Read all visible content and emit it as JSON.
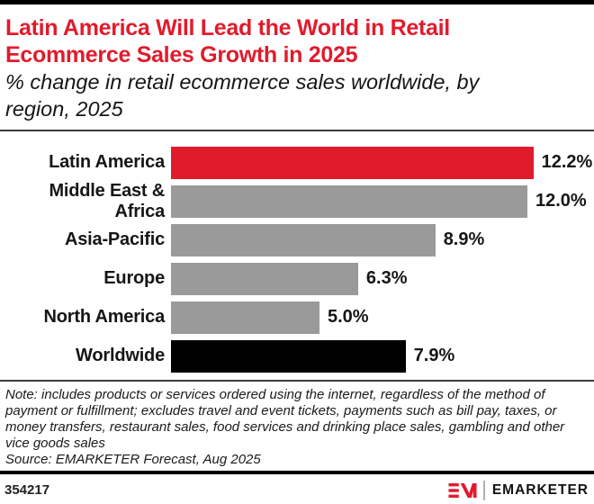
{
  "header": {
    "title": "Latin America Will Lead the World in Retail Ecommerce Sales Growth in 2025",
    "title_lines": [
      "Latin America Will Lead the World in Retail",
      "Ecommerce Sales Growth in 2025"
    ],
    "subtitle": "% change in retail ecommerce sales worldwide, by region, 2025",
    "subtitle_lines": [
      "% change in retail ecommerce sales worldwide, by",
      "region, 2025"
    ]
  },
  "chart_data": {
    "type": "bar",
    "orientation": "horizontal",
    "title": "Latin America Will Lead the World in Retail Ecommerce Sales Growth in 2025",
    "subtitle": "% change in retail ecommerce sales worldwide, by region, 2025",
    "categories": [
      "Latin America",
      "Middle East & Africa",
      "Asia-Pacific",
      "Europe",
      "North America",
      "Worldwide"
    ],
    "values": [
      12.2,
      12.0,
      8.9,
      6.3,
      5.0,
      7.9
    ],
    "value_labels": [
      "12.2%",
      "12.0%",
      "8.9%",
      "6.3%",
      "5.0%",
      "7.9%"
    ],
    "bar_colors": [
      "#e11b2c",
      "#9a9a9a",
      "#9a9a9a",
      "#9a9a9a",
      "#9a9a9a",
      "#000000"
    ],
    "xlabel": "",
    "ylabel": "",
    "xlim": [
      0,
      12.2
    ],
    "grid": false,
    "legend": false,
    "axis_ticks": false
  },
  "footer": {
    "note": "Note: includes products or services ordered using the internet, regardless of the method of payment or fulfillment; excludes travel and event tickets, payments such as bill pay, taxes, or money transfers, restaurant sales, food services and drinking place sales, gambling and other vice goods sales",
    "source": "Source: EMARKETER Forecast, Aug 2025",
    "chart_number": "354217",
    "brand_name": "EMARKETER"
  },
  "colors": {
    "accent_red": "#e11b2c",
    "bar_gray": "#9a9a9a",
    "bar_black": "#000000",
    "text": "#1a1a1a",
    "rule_black": "#000000"
  },
  "icons": {
    "emarketer_monogram": "em-logo-icon"
  }
}
